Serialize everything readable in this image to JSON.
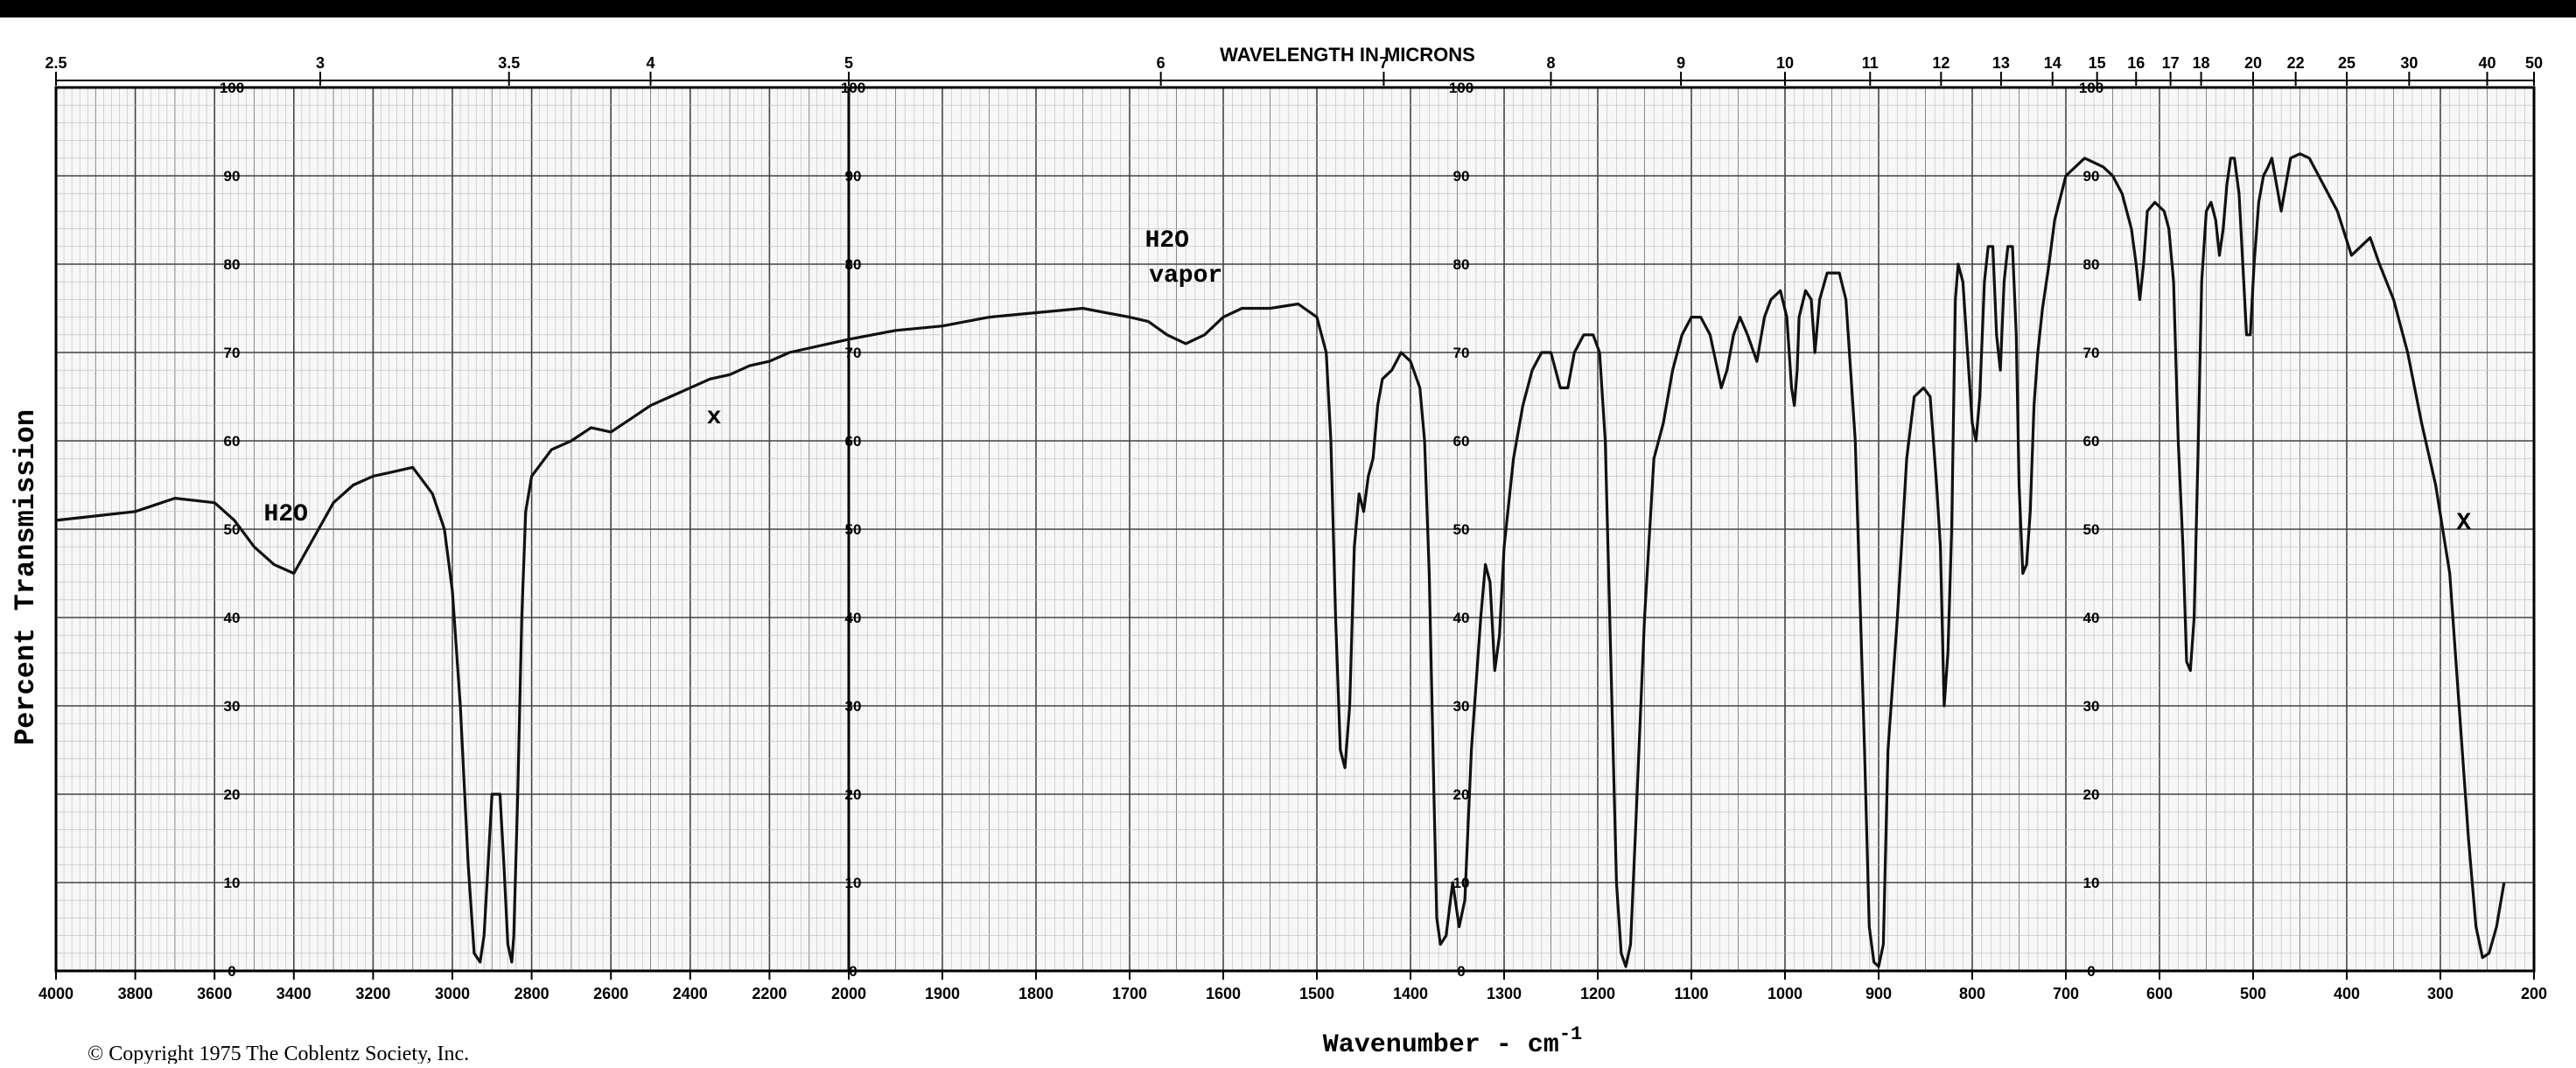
{
  "chart_data": {
    "type": "line",
    "title": "",
    "top_axis_title": "WAVELENGTH IN MICRONS",
    "xlabel": "Wavenumber - cm",
    "xlabel_superscript": "-1",
    "ylabel": "Percent Transmission",
    "ylim": [
      0,
      100
    ],
    "grid": true,
    "legend": "none",
    "copyright": "© Copyright 1975 The Coblentz Society, Inc.",
    "panels": [
      {
        "name": "panel-1",
        "x_start": 4000,
        "x_end": 2000
      },
      {
        "name": "panel-2",
        "x_start": 2000,
        "x_end": 200
      }
    ],
    "x_tick_labels": [
      "4000",
      "3800",
      "3600",
      "3400",
      "3200",
      "3000",
      "2800",
      "2600",
      "2400",
      "2200",
      "2000",
      "1900",
      "1800",
      "1700",
      "1600",
      "1500",
      "1400",
      "1300",
      "1200",
      "1100",
      "1000",
      "900",
      "800",
      "700",
      "600",
      "500",
      "400",
      "300",
      "200"
    ],
    "x_tick_values": [
      4000,
      3800,
      3600,
      3400,
      3200,
      3000,
      2800,
      2600,
      2400,
      2200,
      2000,
      1900,
      1800,
      1700,
      1600,
      1500,
      1400,
      1300,
      1200,
      1100,
      1000,
      900,
      800,
      700,
      600,
      500,
      400,
      300,
      200
    ],
    "y_tick_labels": [
      "0",
      "10",
      "20",
      "30",
      "40",
      "50",
      "60",
      "70",
      "80",
      "90",
      "100"
    ],
    "y_tick_values": [
      0,
      10,
      20,
      30,
      40,
      50,
      60,
      70,
      80,
      90,
      100
    ],
    "micron_tick_labels": [
      "2.5",
      "3",
      "3.5",
      "4",
      "5",
      "6",
      "7",
      "8",
      "9",
      "10",
      "11",
      "12",
      "13",
      "14",
      "15",
      "16",
      "17",
      "18",
      "20",
      "22",
      "25",
      "30",
      "40",
      "50"
    ],
    "micron_tick_values": [
      2.5,
      3,
      3.5,
      4,
      5,
      6,
      7,
      8,
      9,
      10,
      11,
      12,
      13,
      14,
      15,
      16,
      17,
      18,
      20,
      22,
      25,
      30,
      40,
      50
    ],
    "annotations": [
      {
        "text": "H2O",
        "x": 3420,
        "y": 51
      },
      {
        "text": "x",
        "x": 2340,
        "y": 62
      },
      {
        "text": "H2O",
        "x": 1660,
        "y": 82
      },
      {
        "text": "vapor",
        "x": 1640,
        "y": 78
      },
      {
        "text": "X",
        "x": 275,
        "y": 50
      }
    ],
    "series": [
      {
        "points": [
          [
            4000,
            51
          ],
          [
            3900,
            51.5
          ],
          [
            3800,
            52
          ],
          [
            3700,
            53.5
          ],
          [
            3600,
            53
          ],
          [
            3550,
            51
          ],
          [
            3500,
            48
          ],
          [
            3450,
            46
          ],
          [
            3400,
            45
          ],
          [
            3350,
            49
          ],
          [
            3300,
            53
          ],
          [
            3250,
            55
          ],
          [
            3200,
            56
          ],
          [
            3150,
            56.5
          ],
          [
            3100,
            57
          ],
          [
            3050,
            54
          ],
          [
            3020,
            50
          ],
          [
            3000,
            43
          ],
          [
            2980,
            30
          ],
          [
            2960,
            12
          ],
          [
            2945,
            2
          ],
          [
            2930,
            1
          ],
          [
            2920,
            4
          ],
          [
            2910,
            12
          ],
          [
            2900,
            20
          ],
          [
            2880,
            20
          ],
          [
            2870,
            12
          ],
          [
            2860,
            3
          ],
          [
            2850,
            1
          ],
          [
            2845,
            4
          ],
          [
            2835,
            20
          ],
          [
            2825,
            40
          ],
          [
            2815,
            52
          ],
          [
            2800,
            56
          ],
          [
            2750,
            59
          ],
          [
            2700,
            60
          ],
          [
            2650,
            61.5
          ],
          [
            2600,
            61
          ],
          [
            2550,
            62.5
          ],
          [
            2500,
            64
          ],
          [
            2450,
            65
          ],
          [
            2400,
            66
          ],
          [
            2350,
            67
          ],
          [
            2300,
            67.5
          ],
          [
            2250,
            68.5
          ],
          [
            2200,
            69
          ],
          [
            2150,
            70
          ],
          [
            2100,
            70.5
          ],
          [
            2050,
            71
          ],
          [
            2000,
            71.5
          ],
          [
            1950,
            72.5
          ],
          [
            1900,
            73
          ],
          [
            1850,
            74
          ],
          [
            1800,
            74.5
          ],
          [
            1750,
            75
          ],
          [
            1700,
            74
          ],
          [
            1680,
            73.5
          ],
          [
            1660,
            72
          ],
          [
            1640,
            71
          ],
          [
            1620,
            72
          ],
          [
            1600,
            74
          ],
          [
            1580,
            75
          ],
          [
            1550,
            75
          ],
          [
            1520,
            75.5
          ],
          [
            1500,
            74
          ],
          [
            1490,
            70
          ],
          [
            1485,
            60
          ],
          [
            1480,
            40
          ],
          [
            1475,
            25
          ],
          [
            1470,
            23
          ],
          [
            1465,
            30
          ],
          [
            1460,
            48
          ],
          [
            1455,
            54
          ],
          [
            1450,
            52
          ],
          [
            1445,
            56
          ],
          [
            1440,
            58
          ],
          [
            1435,
            64
          ],
          [
            1430,
            67
          ],
          [
            1420,
            68
          ],
          [
            1410,
            70
          ],
          [
            1400,
            69
          ],
          [
            1390,
            66
          ],
          [
            1385,
            60
          ],
          [
            1380,
            45
          ],
          [
            1375,
            20
          ],
          [
            1372,
            6
          ],
          [
            1368,
            3
          ],
          [
            1362,
            4
          ],
          [
            1355,
            10
          ],
          [
            1348,
            5
          ],
          [
            1342,
            8
          ],
          [
            1335,
            25
          ],
          [
            1325,
            40
          ],
          [
            1320,
            46
          ],
          [
            1315,
            44
          ],
          [
            1310,
            34
          ],
          [
            1305,
            38
          ],
          [
            1300,
            48
          ],
          [
            1290,
            58
          ],
          [
            1280,
            64
          ],
          [
            1270,
            68
          ],
          [
            1260,
            70
          ],
          [
            1250,
            70
          ],
          [
            1240,
            66
          ],
          [
            1232,
            66
          ],
          [
            1225,
            70
          ],
          [
            1215,
            72
          ],
          [
            1205,
            72
          ],
          [
            1198,
            70
          ],
          [
            1192,
            60
          ],
          [
            1186,
            35
          ],
          [
            1180,
            10
          ],
          [
            1175,
            2
          ],
          [
            1170,
            0.5
          ],
          [
            1165,
            3
          ],
          [
            1160,
            15
          ],
          [
            1150,
            40
          ],
          [
            1140,
            58
          ],
          [
            1130,
            62
          ],
          [
            1120,
            68
          ],
          [
            1110,
            72
          ],
          [
            1100,
            74
          ],
          [
            1090,
            74
          ],
          [
            1080,
            72
          ],
          [
            1072,
            68
          ],
          [
            1068,
            66
          ],
          [
            1062,
            68
          ],
          [
            1055,
            72
          ],
          [
            1048,
            74
          ],
          [
            1040,
            72
          ],
          [
            1030,
            69
          ],
          [
            1022,
            74
          ],
          [
            1015,
            76
          ],
          [
            1005,
            77
          ],
          [
            998,
            74
          ],
          [
            993,
            66
          ],
          [
            990,
            64
          ],
          [
            987,
            68
          ],
          [
            985,
            74
          ],
          [
            978,
            77
          ],
          [
            972,
            76
          ],
          [
            968,
            70
          ],
          [
            963,
            76
          ],
          [
            955,
            79
          ],
          [
            948,
            79
          ],
          [
            942,
            79
          ],
          [
            935,
            76
          ],
          [
            925,
            60
          ],
          [
            915,
            25
          ],
          [
            910,
            5
          ],
          [
            905,
            1
          ],
          [
            900,
            0.5
          ],
          [
            895,
            3
          ],
          [
            890,
            25
          ],
          [
            880,
            40
          ],
          [
            870,
            58
          ],
          [
            862,
            65
          ],
          [
            852,
            66
          ],
          [
            845,
            65
          ],
          [
            838,
            55
          ],
          [
            834,
            48
          ],
          [
            830,
            30
          ],
          [
            826,
            36
          ],
          [
            822,
            50
          ],
          [
            818,
            76
          ],
          [
            815,
            80
          ],
          [
            810,
            78
          ],
          [
            805,
            70
          ],
          [
            800,
            62
          ],
          [
            796,
            60
          ],
          [
            792,
            65
          ],
          [
            787,
            78
          ],
          [
            783,
            82
          ],
          [
            778,
            82
          ],
          [
            774,
            72
          ],
          [
            770,
            68
          ],
          [
            766,
            78
          ],
          [
            762,
            82
          ],
          [
            757,
            82
          ],
          [
            753,
            72
          ],
          [
            750,
            55
          ],
          [
            746,
            45
          ],
          [
            742,
            46
          ],
          [
            738,
            52
          ],
          [
            734,
            64
          ],
          [
            730,
            70
          ],
          [
            725,
            75
          ],
          [
            718,
            80
          ],
          [
            712,
            85
          ],
          [
            700,
            90
          ],
          [
            690,
            91
          ],
          [
            680,
            92
          ],
          [
            670,
            91.5
          ],
          [
            660,
            91
          ],
          [
            650,
            90
          ],
          [
            640,
            88
          ],
          [
            630,
            84
          ],
          [
            625,
            80
          ],
          [
            621,
            76
          ],
          [
            617,
            80
          ],
          [
            613,
            86
          ],
          [
            605,
            87
          ],
          [
            595,
            86
          ],
          [
            590,
            84
          ],
          [
            585,
            78
          ],
          [
            580,
            60
          ],
          [
            575,
            48
          ],
          [
            571,
            35
          ],
          [
            567,
            34
          ],
          [
            563,
            40
          ],
          [
            559,
            58
          ],
          [
            555,
            78
          ],
          [
            550,
            86
          ],
          [
            545,
            87
          ],
          [
            540,
            85
          ],
          [
            536,
            81
          ],
          [
            532,
            84
          ],
          [
            528,
            89
          ],
          [
            524,
            92
          ],
          [
            520,
            92
          ],
          [
            515,
            88
          ],
          [
            511,
            80
          ],
          [
            507,
            72
          ],
          [
            503,
            72
          ],
          [
            499,
            80
          ],
          [
            494,
            87
          ],
          [
            489,
            90
          ],
          [
            484,
            91
          ],
          [
            480,
            92
          ],
          [
            475,
            89
          ],
          [
            470,
            86
          ],
          [
            465,
            89
          ],
          [
            460,
            92
          ],
          [
            450,
            92.5
          ],
          [
            440,
            92
          ],
          [
            425,
            89
          ],
          [
            410,
            86
          ],
          [
            395,
            81
          ],
          [
            385,
            82
          ],
          [
            375,
            83
          ],
          [
            365,
            80
          ],
          [
            350,
            76
          ],
          [
            335,
            70
          ],
          [
            320,
            62
          ],
          [
            305,
            55
          ],
          [
            290,
            45
          ],
          [
            280,
            30
          ],
          [
            270,
            15
          ],
          [
            262,
            5
          ],
          [
            255,
            1.5
          ],
          [
            248,
            2
          ],
          [
            240,
            5
          ],
          [
            232,
            10
          ]
        ]
      }
    ]
  }
}
